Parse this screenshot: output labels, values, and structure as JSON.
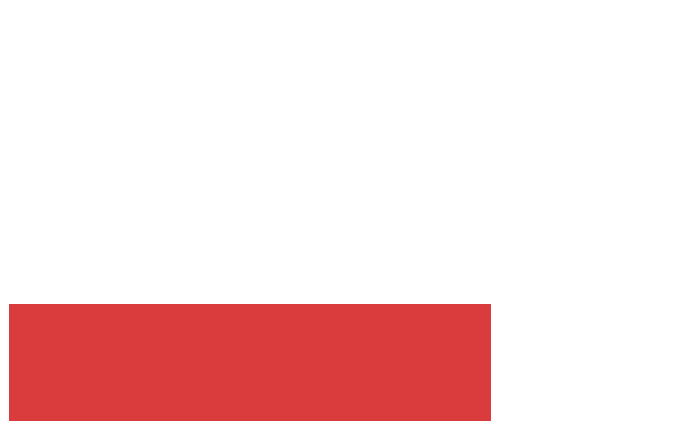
{
  "page": {
    "background_color": "#ffffff"
  },
  "banner": {
    "color": "#da3b3c"
  }
}
